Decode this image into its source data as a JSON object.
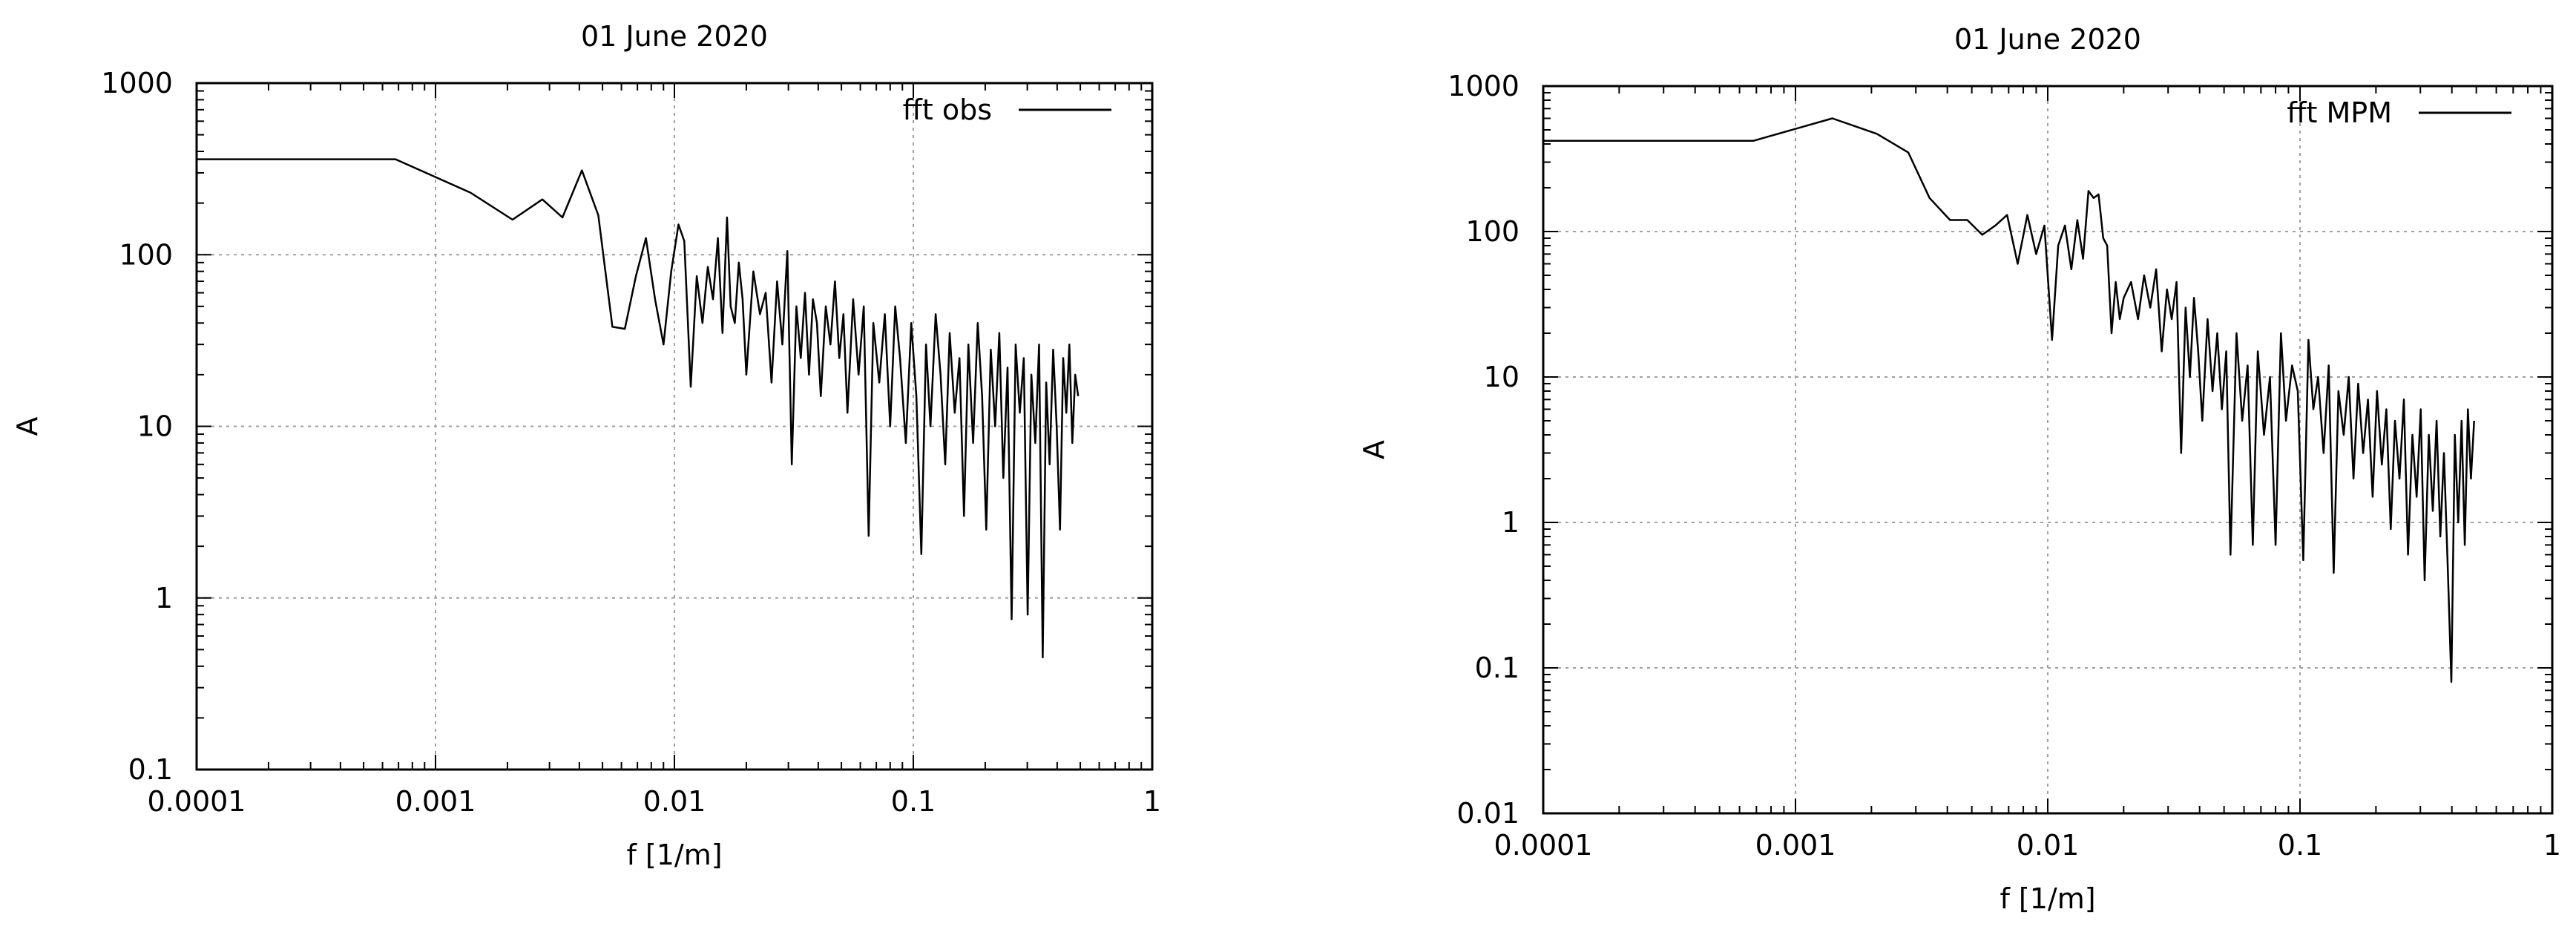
{
  "chart_data": [
    {
      "type": "line",
      "title": "01 June 2020",
      "xlabel": "f [1/m]",
      "ylabel": "A",
      "xscale": "log",
      "yscale": "log",
      "xlim": [
        0.0001,
        1
      ],
      "ylim": [
        0.1,
        1000
      ],
      "x_ticks": [
        {
          "v": 0.0001,
          "label": "0.0001"
        },
        {
          "v": 0.001,
          "label": "0.001"
        },
        {
          "v": 0.01,
          "label": "0.01"
        },
        {
          "v": 0.1,
          "label": "0.1"
        },
        {
          "v": 1,
          "label": "1"
        }
      ],
      "y_ticks": [
        {
          "v": 0.1,
          "label": "0.1"
        },
        {
          "v": 1,
          "label": "1"
        },
        {
          "v": 10,
          "label": "10"
        },
        {
          "v": 100,
          "label": "100"
        },
        {
          "v": 1000,
          "label": "1000"
        }
      ],
      "grid": true,
      "legend_position": "top-right",
      "series": [
        {
          "name": "fft obs",
          "color": "#000000",
          "x": [
            0.0001,
            0.00068,
            0.0014,
            0.0021,
            0.0028,
            0.0034,
            0.0041,
            0.0048,
            0.0055,
            0.0062,
            0.0069,
            0.0076,
            0.0083,
            0.009,
            0.0097,
            0.0104,
            0.011,
            0.0117,
            0.0124,
            0.0131,
            0.0138,
            0.0145,
            0.0152,
            0.0159,
            0.0166,
            0.0172,
            0.0179,
            0.0186,
            0.0193,
            0.02,
            0.0214,
            0.0228,
            0.0241,
            0.0255,
            0.0269,
            0.0283,
            0.0297,
            0.031,
            0.0324,
            0.0338,
            0.0352,
            0.0366,
            0.038,
            0.0395,
            0.041,
            0.043,
            0.045,
            0.047,
            0.049,
            0.051,
            0.053,
            0.056,
            0.059,
            0.062,
            0.065,
            0.068,
            0.072,
            0.076,
            0.08,
            0.084,
            0.088,
            0.093,
            0.098,
            0.103,
            0.108,
            0.113,
            0.118,
            0.124,
            0.13,
            0.136,
            0.142,
            0.149,
            0.156,
            0.163,
            0.17,
            0.178,
            0.186,
            0.194,
            0.202,
            0.211,
            0.22,
            0.229,
            0.238,
            0.248,
            0.258,
            0.268,
            0.279,
            0.29,
            0.301,
            0.312,
            0.324,
            0.336,
            0.348,
            0.36,
            0.372,
            0.385,
            0.398,
            0.411,
            0.424,
            0.437,
            0.45,
            0.463,
            0.476,
            0.49
          ],
          "y": [
            360,
            360,
            230,
            160,
            210,
            165,
            310,
            170,
            38,
            37,
            75,
            125,
            55,
            30,
            80,
            150,
            120,
            17,
            75,
            40,
            85,
            55,
            125,
            35,
            165,
            50,
            40,
            90,
            55,
            20,
            80,
            45,
            60,
            18,
            70,
            30,
            105,
            6,
            50,
            25,
            60,
            20,
            55,
            40,
            15,
            50,
            30,
            70,
            25,
            45,
            12,
            55,
            20,
            50,
            2.3,
            40,
            18,
            45,
            10,
            50,
            25,
            8,
            40,
            15,
            1.8,
            30,
            10,
            45,
            20,
            6,
            35,
            12,
            25,
            3,
            30,
            8,
            40,
            15,
            2.5,
            28,
            10,
            35,
            5,
            22,
            0.75,
            30,
            12,
            25,
            0.8,
            20,
            8,
            30,
            0.45,
            18,
            6,
            28,
            10,
            2.5,
            25,
            12,
            30,
            8,
            20,
            15
          ]
        }
      ]
    },
    {
      "type": "line",
      "title": "01 June 2020",
      "xlabel": "f [1/m]",
      "ylabel": "A",
      "xscale": "log",
      "yscale": "log",
      "xlim": [
        0.0001,
        1
      ],
      "ylim": [
        0.01,
        1000
      ],
      "x_ticks": [
        {
          "v": 0.0001,
          "label": "0.0001"
        },
        {
          "v": 0.001,
          "label": "0.001"
        },
        {
          "v": 0.01,
          "label": "0.01"
        },
        {
          "v": 0.1,
          "label": "0.1"
        },
        {
          "v": 1,
          "label": "1"
        }
      ],
      "y_ticks": [
        {
          "v": 0.01,
          "label": "0.01"
        },
        {
          "v": 0.1,
          "label": "0.1"
        },
        {
          "v": 1,
          "label": "1"
        },
        {
          "v": 10,
          "label": "10"
        },
        {
          "v": 100,
          "label": "100"
        },
        {
          "v": 1000,
          "label": "1000"
        }
      ],
      "grid": true,
      "legend_position": "top-right",
      "series": [
        {
          "name": "fft MPM",
          "color": "#000000",
          "x": [
            0.0001,
            0.00068,
            0.0014,
            0.0021,
            0.0028,
            0.0034,
            0.0041,
            0.0048,
            0.0055,
            0.0062,
            0.0069,
            0.0076,
            0.0083,
            0.009,
            0.0097,
            0.0104,
            0.011,
            0.0117,
            0.0124,
            0.0131,
            0.0138,
            0.0145,
            0.0152,
            0.0159,
            0.0166,
            0.0172,
            0.0179,
            0.0186,
            0.0193,
            0.02,
            0.0214,
            0.0228,
            0.0241,
            0.0255,
            0.0269,
            0.0283,
            0.0297,
            0.031,
            0.0324,
            0.0338,
            0.0352,
            0.0366,
            0.038,
            0.0395,
            0.041,
            0.043,
            0.045,
            0.047,
            0.049,
            0.051,
            0.053,
            0.056,
            0.059,
            0.062,
            0.065,
            0.068,
            0.072,
            0.076,
            0.08,
            0.084,
            0.088,
            0.093,
            0.098,
            0.103,
            0.108,
            0.113,
            0.118,
            0.124,
            0.13,
            0.136,
            0.142,
            0.149,
            0.156,
            0.163,
            0.17,
            0.178,
            0.186,
            0.194,
            0.202,
            0.211,
            0.22,
            0.229,
            0.238,
            0.248,
            0.258,
            0.268,
            0.279,
            0.29,
            0.301,
            0.312,
            0.324,
            0.336,
            0.348,
            0.36,
            0.372,
            0.385,
            0.398,
            0.411,
            0.424,
            0.437,
            0.45,
            0.463,
            0.476,
            0.49
          ],
          "y": [
            420,
            420,
            600,
            470,
            350,
            170,
            120,
            120,
            95,
            110,
            130,
            60,
            130,
            70,
            110,
            18,
            80,
            110,
            55,
            120,
            65,
            190,
            170,
            180,
            90,
            80,
            20,
            45,
            25,
            35,
            45,
            25,
            50,
            30,
            55,
            15,
            40,
            25,
            45,
            3,
            30,
            10,
            35,
            15,
            5,
            25,
            8,
            20,
            6,
            15,
            0.6,
            20,
            5,
            12,
            0.7,
            15,
            4,
            10,
            0.7,
            20,
            5,
            12,
            8,
            0.55,
            18,
            6,
            10,
            3,
            12,
            0.45,
            8,
            4,
            10,
            2,
            9,
            3,
            7,
            1.5,
            8,
            2.5,
            6,
            0.9,
            5,
            2,
            7,
            0.6,
            4,
            1.5,
            6,
            0.4,
            4,
            1.2,
            5,
            0.8,
            3,
            0.5,
            0.08,
            4,
            1,
            5,
            0.7,
            6,
            2,
            5
          ]
        }
      ]
    }
  ]
}
